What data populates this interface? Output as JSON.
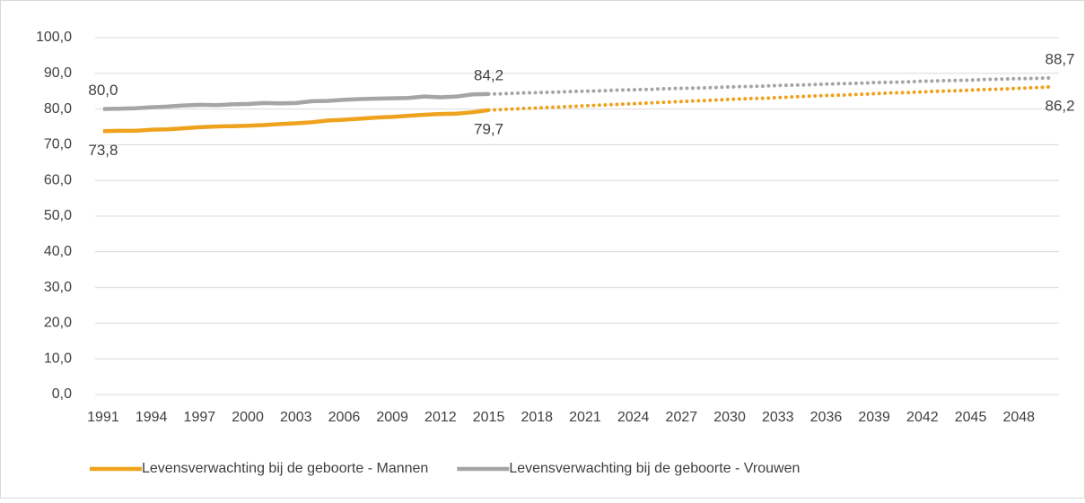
{
  "chart_data": {
    "type": "line",
    "x": [
      1991,
      1992,
      1993,
      1994,
      1995,
      1996,
      1997,
      1998,
      1999,
      2000,
      2001,
      2002,
      2003,
      2004,
      2005,
      2006,
      2007,
      2008,
      2009,
      2010,
      2011,
      2012,
      2013,
      2014,
      2015,
      2016,
      2017,
      2018,
      2019,
      2020,
      2021,
      2022,
      2023,
      2024,
      2025,
      2026,
      2027,
      2028,
      2029,
      2030,
      2031,
      2032,
      2033,
      2034,
      2035,
      2036,
      2037,
      2038,
      2039,
      2040,
      2041,
      2042,
      2043,
      2044,
      2045,
      2046,
      2047,
      2048,
      2049,
      2050
    ],
    "xlim": [
      1990.5,
      2050.5
    ],
    "xticks": [
      1991,
      1994,
      1997,
      2000,
      2003,
      2006,
      2009,
      2012,
      2015,
      2018,
      2021,
      2024,
      2027,
      2030,
      2033,
      2036,
      2039,
      2042,
      2045,
      2048
    ],
    "ylim": [
      0,
      100
    ],
    "yticks": [
      {
        "value": 0,
        "label": "0,0"
      },
      {
        "value": 10,
        "label": "10,0"
      },
      {
        "value": 20,
        "label": "20,0"
      },
      {
        "value": 30,
        "label": "30,0"
      },
      {
        "value": 40,
        "label": "40,0"
      },
      {
        "value": 50,
        "label": "50,0"
      },
      {
        "value": 60,
        "label": "60,0"
      },
      {
        "value": 70,
        "label": "70,0"
      },
      {
        "value": 80,
        "label": "80,0"
      },
      {
        "value": 90,
        "label": "90,0"
      },
      {
        "value": 100,
        "label": "100,0"
      }
    ],
    "grid": true,
    "legend": "bottom",
    "projection_from": 2015,
    "series": [
      {
        "name": "Levensverwachting bij de geboorte - Mannen",
        "color": "#eea21e",
        "values": [
          73.8,
          73.9,
          73.9,
          74.2,
          74.3,
          74.6,
          74.9,
          75.1,
          75.2,
          75.3,
          75.5,
          75.8,
          76.0,
          76.3,
          76.8,
          77.0,
          77.3,
          77.6,
          77.8,
          78.1,
          78.4,
          78.6,
          78.7,
          79.1,
          79.7,
          79.9,
          80.1,
          80.3,
          80.5,
          80.7,
          80.9,
          81.1,
          81.3,
          81.5,
          81.7,
          81.9,
          82.1,
          82.3,
          82.5,
          82.7,
          82.9,
          83.0,
          83.2,
          83.4,
          83.6,
          83.8,
          83.9,
          84.1,
          84.3,
          84.5,
          84.6,
          84.8,
          85.0,
          85.1,
          85.3,
          85.5,
          85.6,
          85.8,
          86.0,
          86.2
        ],
        "value_labels": [
          "73,8",
          null,
          null,
          null,
          null,
          null,
          null,
          null,
          null,
          null,
          null,
          null,
          null,
          null,
          null,
          null,
          null,
          null,
          null,
          null,
          null,
          null,
          null,
          null,
          "79,7",
          null,
          null,
          null,
          null,
          null,
          null,
          null,
          null,
          null,
          null,
          null,
          null,
          null,
          null,
          null,
          null,
          null,
          null,
          null,
          null,
          null,
          null,
          null,
          null,
          null,
          null,
          null,
          null,
          null,
          null,
          null,
          null,
          null,
          null,
          "86,2"
        ]
      },
      {
        "name": "Levensverwachting bij de geboorte - Vrouwen",
        "color": "#a5a5a5",
        "values": [
          80.0,
          80.1,
          80.2,
          80.5,
          80.7,
          81.0,
          81.2,
          81.1,
          81.3,
          81.4,
          81.7,
          81.6,
          81.7,
          82.2,
          82.3,
          82.6,
          82.8,
          82.9,
          83.0,
          83.1,
          83.5,
          83.3,
          83.5,
          84.1,
          84.2,
          84.3,
          84.5,
          84.6,
          84.7,
          84.9,
          85.0,
          85.1,
          85.3,
          85.4,
          85.5,
          85.7,
          85.8,
          85.9,
          86.0,
          86.2,
          86.3,
          86.4,
          86.6,
          86.7,
          86.8,
          87.0,
          87.1,
          87.2,
          87.4,
          87.5,
          87.6,
          87.8,
          87.9,
          88.0,
          88.1,
          88.3,
          88.4,
          88.5,
          88.6,
          88.7
        ],
        "value_labels": [
          "80,0",
          null,
          null,
          null,
          null,
          null,
          null,
          null,
          null,
          null,
          null,
          null,
          null,
          null,
          null,
          null,
          null,
          null,
          null,
          null,
          null,
          null,
          null,
          null,
          "84,2",
          null,
          null,
          null,
          null,
          null,
          null,
          null,
          null,
          null,
          null,
          null,
          null,
          null,
          null,
          null,
          null,
          null,
          null,
          null,
          null,
          null,
          null,
          null,
          null,
          null,
          null,
          null,
          null,
          null,
          null,
          null,
          null,
          null,
          null,
          "88,7"
        ]
      }
    ]
  }
}
